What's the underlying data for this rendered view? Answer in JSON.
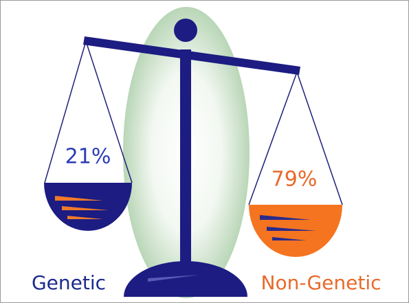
{
  "left": {
    "label": "Genetic",
    "share": "21%"
  },
  "right": {
    "label": "Non-Genetic",
    "share": "79%"
  }
}
